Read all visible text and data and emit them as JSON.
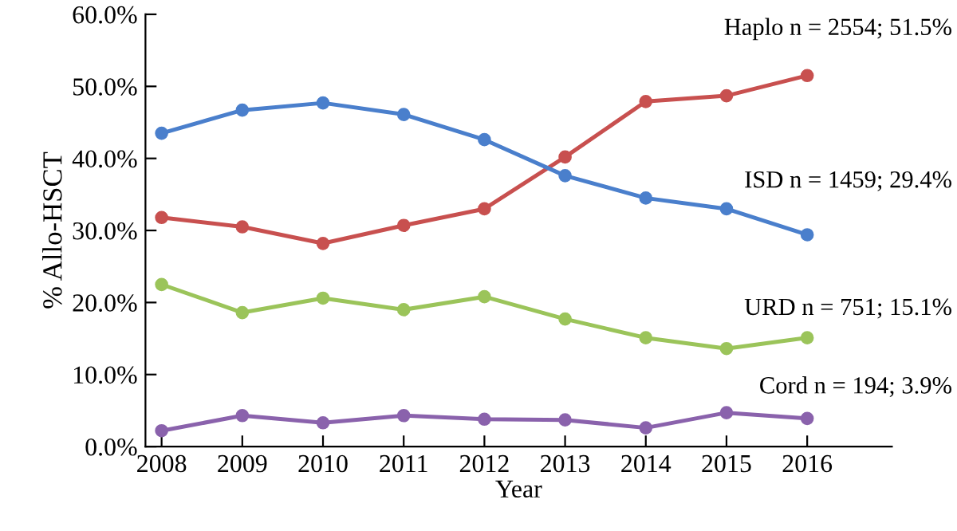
{
  "chart_data": {
    "type": "line",
    "xlabel": "Year",
    "ylabel": "% Allo-HSCT",
    "categories": [
      "2008",
      "2009",
      "2010",
      "2011",
      "2012",
      "2013",
      "2014",
      "2015",
      "2016"
    ],
    "series": [
      {
        "name": "Haplo n = 2554; 51.5%",
        "color": "#c8504f",
        "values": [
          31.8,
          30.5,
          28.2,
          30.7,
          33.0,
          40.2,
          47.9,
          48.7,
          51.5
        ]
      },
      {
        "name": "ISD n = 1459; 29.4%",
        "color": "#4a7fcc",
        "values": [
          43.5,
          46.7,
          47.7,
          46.1,
          42.6,
          37.6,
          34.5,
          33.0,
          29.4
        ]
      },
      {
        "name": "URD n = 751; 15.1%",
        "color": "#9bc45a",
        "values": [
          22.5,
          18.6,
          20.6,
          19.0,
          20.8,
          17.7,
          15.1,
          13.6,
          15.1
        ]
      },
      {
        "name": "Cord n = 194; 3.9%",
        "color": "#8a62ac",
        "values": [
          2.2,
          4.3,
          3.3,
          4.3,
          3.8,
          3.7,
          2.6,
          4.7,
          3.9
        ]
      }
    ],
    "ylim": [
      0,
      60
    ],
    "yticks": [
      {
        "value": 0,
        "label": "0.0%"
      },
      {
        "value": 10,
        "label": "10.0%"
      },
      {
        "value": 20,
        "label": "20.0%"
      },
      {
        "value": 30,
        "label": "30.0%"
      },
      {
        "value": 40,
        "label": "40.0%"
      },
      {
        "value": 50,
        "label": "50.0%"
      },
      {
        "value": 60,
        "label": "60.0%"
      }
    ],
    "grid": false,
    "legend": false,
    "marker": "circle",
    "line_style": "solid"
  }
}
